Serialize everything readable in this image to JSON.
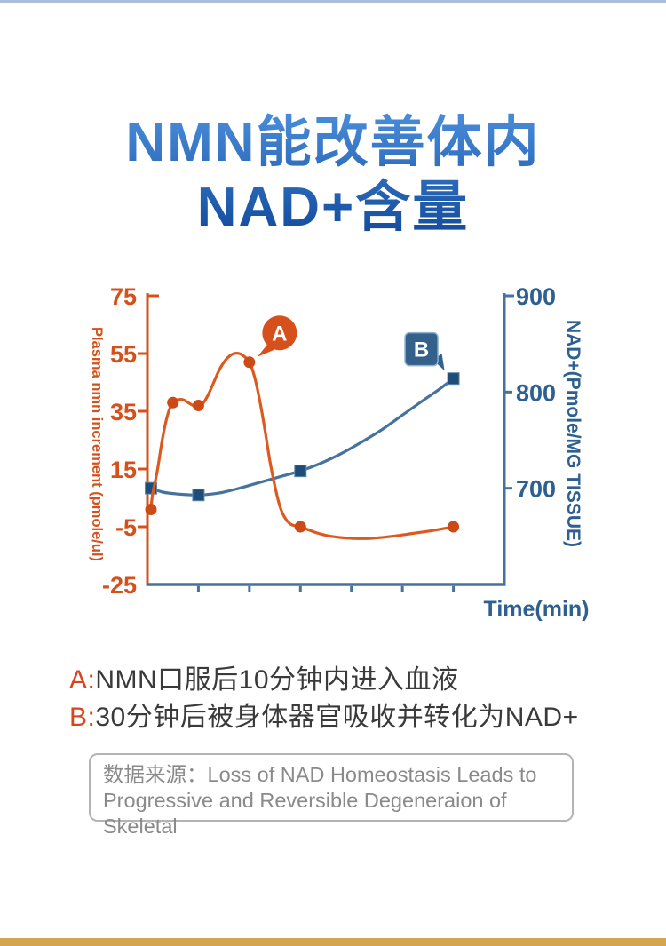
{
  "page": {
    "top_divider_color": "#a9bedd",
    "bottom_bar_color": "#d6a44e",
    "background": "#ffffff"
  },
  "title": {
    "line1": "NMN能改善体内",
    "line2": "NAD+含量",
    "gradient_top": "#4a8edb",
    "gradient_bottom": "#11499a"
  },
  "chart_data": {
    "type": "line",
    "x_axis": {
      "label": "Time(min)",
      "min": 0,
      "max": 70,
      "ticks": [
        10,
        20,
        30,
        40,
        50,
        60
      ],
      "color": "#46739e",
      "label_color": "#2d6090"
    },
    "left_axis": {
      "label": "Plasma nmn increment (pmole/ul)",
      "min": -25,
      "max": 75,
      "ticks": [
        75,
        55,
        35,
        15,
        -5,
        -25
      ],
      "color": "#d5501a"
    },
    "right_axis": {
      "label": "NAD+(Pmole/MG TISSUE)",
      "min": 600,
      "max": 900,
      "ticks": [
        900,
        800,
        700
      ],
      "color": "#46739e",
      "text_color": "#2d6090"
    },
    "grid": false,
    "legend": "none",
    "series": [
      {
        "name": "plasma-nmn-increment",
        "axis": "left",
        "color": "#dd5a1e",
        "marker": "circle",
        "marker_color": "#cc4a15",
        "points": [
          [
            0,
            1
          ],
          [
            5,
            38
          ],
          [
            10,
            37
          ],
          [
            20,
            52
          ],
          [
            30,
            -5
          ],
          [
            60,
            -5
          ]
        ],
        "curve": [
          [
            0,
            1
          ],
          [
            1,
            6
          ],
          [
            2,
            15
          ],
          [
            3,
            26
          ],
          [
            4,
            34
          ],
          [
            5,
            38
          ],
          [
            6,
            39
          ],
          [
            7,
            39
          ],
          [
            8,
            38
          ],
          [
            9,
            37
          ],
          [
            10,
            37
          ],
          [
            11,
            38
          ],
          [
            12,
            41
          ],
          [
            13,
            45
          ],
          [
            14,
            49
          ],
          [
            15,
            52
          ],
          [
            16,
            54
          ],
          [
            17,
            55
          ],
          [
            18,
            55
          ],
          [
            19,
            54
          ],
          [
            20,
            52
          ],
          [
            21,
            47
          ],
          [
            22,
            39
          ],
          [
            23,
            29
          ],
          [
            24,
            18
          ],
          [
            25,
            9
          ],
          [
            26,
            2
          ],
          [
            27,
            -2
          ],
          [
            28,
            -4
          ],
          [
            29,
            -4.7
          ],
          [
            30,
            -5
          ],
          [
            33,
            -7
          ],
          [
            36,
            -8.3
          ],
          [
            40,
            -9
          ],
          [
            44,
            -9
          ],
          [
            48,
            -8.3
          ],
          [
            52,
            -7.3
          ],
          [
            56,
            -6.3
          ],
          [
            60,
            -5
          ]
        ]
      },
      {
        "name": "nad-plus",
        "axis": "right",
        "color": "#46739e",
        "marker": "square",
        "marker_color": "#1f4d77",
        "points": [
          [
            0,
            700
          ],
          [
            10,
            693
          ],
          [
            30,
            718
          ],
          [
            60,
            814
          ]
        ],
        "curve": [
          [
            0,
            700
          ],
          [
            3,
            696
          ],
          [
            6,
            694
          ],
          [
            10,
            693
          ],
          [
            14,
            695
          ],
          [
            18,
            700
          ],
          [
            22,
            706
          ],
          [
            26,
            712
          ],
          [
            30,
            718
          ],
          [
            34,
            726
          ],
          [
            38,
            736
          ],
          [
            42,
            748
          ],
          [
            46,
            761
          ],
          [
            50,
            776
          ],
          [
            54,
            791
          ],
          [
            57,
            802
          ],
          [
            60,
            814
          ]
        ]
      }
    ],
    "annotations": [
      {
        "label": "A",
        "shape": "circle",
        "color": "#d5501a",
        "series": 0,
        "point_index": 3
      },
      {
        "label": "B",
        "shape": "square",
        "color": "#33618c",
        "series": 1,
        "point_index": 3
      }
    ]
  },
  "captions": {
    "a_prefix": "A:",
    "a_text": "NMN口服后10分钟内进入血液",
    "b_prefix": "B:",
    "b_text": "30分钟后被身体器官吸收并转化为NAD+",
    "prefix_color": "#d8441c"
  },
  "source_box": {
    "label": "数据来源：",
    "line1": "Loss of NAD Homeostasis Leads to",
    "line2": "Progressive and Reversible Degeneraion of Skeletal"
  }
}
